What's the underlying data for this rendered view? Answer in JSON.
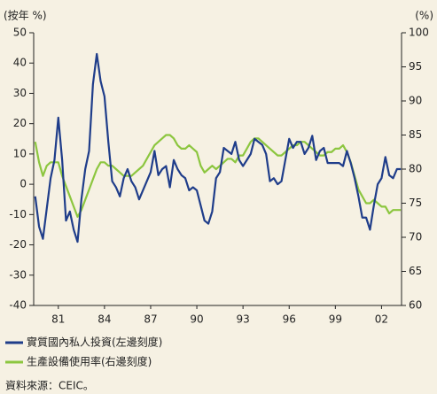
{
  "chart_data": {
    "type": "line",
    "y_label": "(按年 %)",
    "y2_label": "(%)",
    "source": "資料來源：CEIC。",
    "x": [
      1979.5,
      1979.75,
      1980,
      1980.25,
      1980.5,
      1980.75,
      1981,
      1981.25,
      1981.5,
      1981.75,
      1982,
      1982.25,
      1982.5,
      1982.75,
      1983,
      1983.25,
      1983.5,
      1983.75,
      1984,
      1984.25,
      1984.5,
      1984.75,
      1985,
      1985.25,
      1985.5,
      1985.75,
      1986,
      1986.25,
      1986.5,
      1986.75,
      1987,
      1987.25,
      1987.5,
      1987.75,
      1988,
      1988.25,
      1988.5,
      1988.75,
      1989,
      1989.25,
      1989.5,
      1989.75,
      1990,
      1990.25,
      1990.5,
      1990.75,
      1991,
      1991.25,
      1991.5,
      1991.75,
      1992,
      1992.25,
      1992.5,
      1992.75,
      1993,
      1993.25,
      1993.5,
      1993.75,
      1994,
      1994.25,
      1994.5,
      1994.75,
      1995,
      1995.25,
      1995.5,
      1995.75,
      1996,
      1996.25,
      1996.5,
      1996.75,
      1997,
      1997.25,
      1997.5,
      1997.75,
      1998,
      1998.25,
      1998.5,
      1998.75,
      1999,
      1999.25,
      1999.5,
      1999.75,
      2000,
      2000.25,
      2000.5,
      2000.75,
      2001,
      2001.25,
      2001.5,
      2001.75,
      2002,
      2002.25,
      2002.5,
      2002.75,
      2003,
      2003.25
    ],
    "series": [
      {
        "name": "實質國內私人投資(左邊刻度)",
        "color": "#1f3d8a",
        "axis": "y",
        "values": [
          -4,
          -14,
          -18,
          -8,
          2,
          8,
          22,
          8,
          -12,
          -9,
          -15,
          -19,
          -5,
          5,
          11,
          33,
          43,
          34,
          29,
          14,
          1,
          -1,
          -4,
          2,
          5,
          1,
          -1,
          -5,
          -2,
          1,
          4,
          11,
          3,
          5,
          6,
          -1,
          8,
          5,
          3,
          2,
          -2,
          -1,
          -2,
          -7,
          -12,
          -13,
          -9,
          2,
          4,
          12,
          11,
          10,
          14,
          8,
          6,
          8,
          10,
          15,
          14,
          13,
          10,
          1,
          2,
          0,
          1,
          8,
          15,
          12,
          14,
          14,
          10,
          12,
          16,
          8,
          11,
          12,
          7,
          7,
          7,
          7,
          6,
          11,
          7,
          2,
          -4,
          -11,
          -11,
          -15,
          -7,
          0,
          2,
          9,
          3,
          2,
          5,
          5
        ]
      },
      {
        "name": "生產設備使用率(右邊刻度)",
        "color": "#8cc63f",
        "axis": "y2",
        "values": [
          84,
          81,
          79,
          80.5,
          81,
          81,
          81,
          79,
          77.5,
          76,
          74.5,
          73,
          74,
          75.5,
          77,
          78.5,
          80,
          81,
          81,
          80.5,
          80.5,
          80,
          79.5,
          79,
          79,
          79,
          79.5,
          80,
          80.5,
          81.5,
          82.5,
          83.5,
          84,
          84.5,
          85,
          85,
          84.5,
          83.5,
          83,
          83,
          83.5,
          83,
          82.5,
          80.5,
          79.5,
          80,
          80.5,
          80,
          80.5,
          81,
          81.5,
          81.5,
          81,
          82,
          82,
          83,
          84,
          84.5,
          84.5,
          84,
          83.5,
          83,
          82.5,
          82,
          82,
          82.5,
          83,
          83.5,
          83.5,
          84,
          84,
          83.5,
          83,
          82.5,
          82,
          82,
          82.5,
          82.5,
          83,
          83,
          83.5,
          82.5,
          81,
          79,
          77,
          76,
          75,
          75,
          75.5,
          75,
          74.5,
          74.5,
          73.5,
          74,
          74,
          74
        ]
      }
    ],
    "xlim": [
      1979.4,
      2003.3
    ],
    "xticks": [
      {
        "value": 1981,
        "label": "81"
      },
      {
        "value": 1984,
        "label": "84"
      },
      {
        "value": 1987,
        "label": "87"
      },
      {
        "value": 1990,
        "label": "90"
      },
      {
        "value": 1993,
        "label": "93"
      },
      {
        "value": 1996,
        "label": "96"
      },
      {
        "value": 1999,
        "label": "99"
      },
      {
        "value": 2002,
        "label": "02"
      }
    ],
    "ylim": [
      -40,
      50
    ],
    "yticks": [
      -40,
      -30,
      -20,
      -10,
      0,
      10,
      20,
      30,
      40,
      50
    ],
    "y2lim": [
      60,
      100
    ],
    "y2ticks": [
      60,
      65,
      70,
      75,
      80,
      85,
      90,
      95,
      100
    ],
    "line_width": 2.2
  }
}
